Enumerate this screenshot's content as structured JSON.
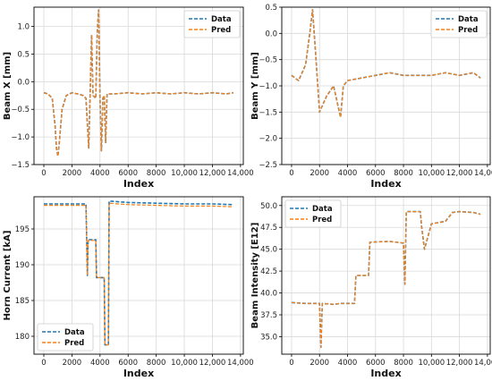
{
  "chart_data": [
    {
      "type": "line",
      "xlabel": "Index",
      "ylabel": "Beam X [mm]",
      "xlim": [
        -700,
        14200
      ],
      "ylim": [
        -1.5,
        1.35
      ],
      "xticks": [
        0,
        2000,
        4000,
        6000,
        8000,
        10000,
        12000,
        14000
      ],
      "xtick_labels": [
        "0",
        "2000",
        "4000",
        "6000",
        "8000",
        "10,000",
        "12,000",
        "14,000"
      ],
      "yticks": [
        -1.5,
        -1.0,
        -0.5,
        0.0,
        0.5,
        1.0
      ],
      "ytick_labels": [
        "−1.5",
        "−1.0",
        "−0.5",
        "0.0",
        "0.5",
        "1.0"
      ],
      "grid": true,
      "legend": "top-right",
      "series": [
        {
          "name": "Data",
          "color": "#1f77b4",
          "dashed": true,
          "x": [
            0,
            300,
            600,
            800,
            900,
            1000,
            1100,
            1300,
            1600,
            2000,
            2400,
            2800,
            3000,
            3200,
            3300,
            3400,
            3500,
            3700,
            3800,
            3900,
            4000,
            4100,
            4200,
            4300,
            4400,
            4500,
            5000,
            6000,
            7000,
            8000,
            9000,
            10000,
            11000,
            12000,
            13000,
            13500
          ],
          "y": [
            -0.2,
            -0.22,
            -0.3,
            -0.8,
            -1.2,
            -1.35,
            -1.1,
            -0.5,
            -0.25,
            -0.2,
            -0.22,
            -0.25,
            -0.3,
            -1.2,
            -0.2,
            0.85,
            -0.25,
            -0.3,
            0.9,
            1.3,
            -0.3,
            -1.25,
            -0.3,
            -0.25,
            -1.1,
            -0.22,
            -0.22,
            -0.2,
            -0.22,
            -0.2,
            -0.22,
            -0.2,
            -0.22,
            -0.2,
            -0.22,
            -0.2
          ]
        },
        {
          "name": "Pred",
          "color": "#ff7f0e",
          "dashed": true,
          "x": [
            0,
            300,
            600,
            800,
            900,
            1000,
            1100,
            1300,
            1600,
            2000,
            2400,
            2800,
            3000,
            3200,
            3300,
            3400,
            3500,
            3700,
            3800,
            3900,
            4000,
            4100,
            4200,
            4300,
            4400,
            4500,
            5000,
            6000,
            7000,
            8000,
            9000,
            10000,
            11000,
            12000,
            13000,
            13500
          ],
          "y": [
            -0.2,
            -0.22,
            -0.3,
            -0.8,
            -1.2,
            -1.35,
            -1.1,
            -0.5,
            -0.25,
            -0.2,
            -0.22,
            -0.25,
            -0.3,
            -1.2,
            -0.2,
            0.85,
            -0.25,
            -0.3,
            0.9,
            1.3,
            -0.3,
            -1.25,
            -0.3,
            -0.25,
            -1.1,
            -0.22,
            -0.22,
            -0.2,
            -0.22,
            -0.2,
            -0.22,
            -0.2,
            -0.22,
            -0.2,
            -0.22,
            -0.2
          ]
        }
      ]
    },
    {
      "type": "line",
      "xlabel": "Index",
      "ylabel": "Beam Y [mm]",
      "xlim": [
        -700,
        14200
      ],
      "ylim": [
        -2.5,
        0.5
      ],
      "xticks": [
        0,
        2000,
        4000,
        6000,
        8000,
        10000,
        12000,
        14000
      ],
      "xtick_labels": [
        "0",
        "2000",
        "4000",
        "6000",
        "8000",
        "10,000",
        "12,000",
        "14,000"
      ],
      "yticks": [
        -2.5,
        -2.0,
        -1.5,
        -1.0,
        -0.5,
        0.0,
        0.5
      ],
      "ytick_labels": [
        "−2.5",
        "−2.0",
        "−1.5",
        "−1.0",
        "−0.5",
        "0.0",
        "0.5"
      ],
      "grid": true,
      "legend": "top-right",
      "series": [
        {
          "name": "Data",
          "color": "#1f77b4",
          "dashed": true,
          "x": [
            0,
            500,
            1000,
            1300,
            1500,
            1700,
            2000,
            2500,
            3000,
            3500,
            3700,
            4000,
            5000,
            6000,
            7000,
            8000,
            9000,
            10000,
            11000,
            12000,
            13000,
            13500
          ],
          "y": [
            -0.8,
            -0.9,
            -0.6,
            0.0,
            0.45,
            -0.3,
            -1.5,
            -1.2,
            -1.0,
            -1.6,
            -1.0,
            -0.9,
            -0.85,
            -0.8,
            -0.75,
            -0.8,
            -0.8,
            -0.8,
            -0.75,
            -0.8,
            -0.75,
            -0.85
          ]
        },
        {
          "name": "Pred",
          "color": "#ff7f0e",
          "dashed": true,
          "x": [
            0,
            500,
            1000,
            1300,
            1500,
            1700,
            2000,
            2500,
            3000,
            3500,
            3700,
            4000,
            5000,
            6000,
            7000,
            8000,
            9000,
            10000,
            11000,
            12000,
            13000,
            13500
          ],
          "y": [
            -0.8,
            -0.9,
            -0.6,
            0.0,
            0.45,
            -0.3,
            -1.5,
            -1.2,
            -1.0,
            -1.6,
            -1.0,
            -0.9,
            -0.85,
            -0.8,
            -0.75,
            -0.8,
            -0.8,
            -0.8,
            -0.75,
            -0.8,
            -0.75,
            -0.85
          ]
        }
      ]
    },
    {
      "type": "line",
      "xlabel": "Index",
      "ylabel": "Horn Current [kA]",
      "xlim": [
        -700,
        14200
      ],
      "ylim": [
        177.5,
        199.5
      ],
      "xticks": [
        0,
        2000,
        4000,
        6000,
        8000,
        10000,
        12000,
        14000
      ],
      "xtick_labels": [
        "0",
        "2000",
        "4000",
        "6000",
        "8000",
        "10,000",
        "12,000",
        "14,000"
      ],
      "yticks": [
        180,
        185,
        190,
        195
      ],
      "ytick_labels": [
        "180",
        "185",
        "190",
        "195"
      ],
      "grid": true,
      "legend": "bottom-left",
      "series": [
        {
          "name": "Data",
          "color": "#1f77b4",
          "dashed": true,
          "x": [
            0,
            1000,
            2000,
            3000,
            3100,
            3150,
            3700,
            3750,
            3800,
            4300,
            4350,
            4400,
            4600,
            4650,
            6000,
            8000,
            10000,
            12000,
            13500
          ],
          "y": [
            198.5,
            198.5,
            198.5,
            198.5,
            188.5,
            193.5,
            193.5,
            188.2,
            188.2,
            188.2,
            178.8,
            178.8,
            178.8,
            198.9,
            198.7,
            198.6,
            198.5,
            198.5,
            198.4
          ]
        },
        {
          "name": "Pred",
          "color": "#ff7f0e",
          "dashed": true,
          "x": [
            0,
            1000,
            2000,
            3000,
            3100,
            3150,
            3700,
            3750,
            3800,
            4300,
            4350,
            4400,
            4600,
            4650,
            6000,
            8000,
            10000,
            12000,
            13500
          ],
          "y": [
            198.3,
            198.3,
            198.3,
            198.3,
            188.5,
            193.4,
            193.4,
            188.2,
            188.2,
            188.2,
            178.8,
            178.8,
            178.8,
            198.6,
            198.4,
            198.3,
            198.2,
            198.2,
            198.1
          ]
        }
      ]
    },
    {
      "type": "line",
      "xlabel": "Index",
      "ylabel": "Beam Intensity [E12]",
      "xlim": [
        -700,
        14200
      ],
      "ylim": [
        33.0,
        51.0
      ],
      "xticks": [
        0,
        2000,
        4000,
        6000,
        8000,
        10000,
        12000,
        14000
      ],
      "xtick_labels": [
        "0",
        "2000",
        "4000",
        "6000",
        "8000",
        "10,000",
        "12,000",
        "14,000"
      ],
      "yticks": [
        35.0,
        37.5,
        40.0,
        42.5,
        45.0,
        47.5,
        50.0
      ],
      "ytick_labels": [
        "35.0",
        "37.5",
        "40.0",
        "42.5",
        "45.0",
        "47.5",
        "50.0"
      ],
      "grid": true,
      "legend": "top-left",
      "series": [
        {
          "name": "Data",
          "color": "#1f77b4",
          "dashed": true,
          "x": [
            0,
            1000,
            2000,
            2100,
            2200,
            3000,
            3500,
            4500,
            4600,
            5500,
            5600,
            7000,
            8000,
            8100,
            8200,
            9200,
            9300,
            9500,
            10000,
            11000,
            11500,
            12000,
            13000,
            13500
          ],
          "y": [
            38.9,
            38.8,
            38.8,
            33.8,
            38.8,
            38.7,
            38.8,
            38.8,
            42.0,
            42.0,
            45.8,
            45.9,
            45.7,
            41.0,
            49.3,
            49.3,
            47.5,
            45.0,
            47.9,
            48.2,
            49.2,
            49.3,
            49.2,
            49.0
          ]
        },
        {
          "name": "Pred",
          "color": "#ff7f0e",
          "dashed": true,
          "x": [
            0,
            1000,
            2000,
            2100,
            2200,
            3000,
            3500,
            4500,
            4600,
            5500,
            5600,
            7000,
            8000,
            8100,
            8200,
            9200,
            9300,
            9500,
            10000,
            11000,
            11500,
            12000,
            13000,
            13500
          ],
          "y": [
            38.9,
            38.8,
            38.8,
            33.8,
            38.8,
            38.7,
            38.8,
            38.8,
            42.0,
            42.0,
            45.8,
            45.9,
            45.7,
            41.0,
            49.3,
            49.3,
            47.5,
            45.0,
            47.9,
            48.2,
            49.2,
            49.3,
            49.2,
            49.0
          ]
        }
      ]
    }
  ]
}
